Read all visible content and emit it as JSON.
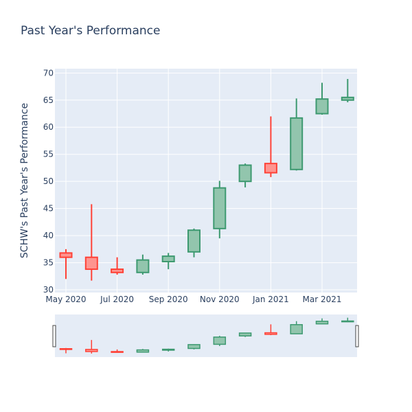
{
  "chart_data": {
    "type": "candlestick",
    "title": "Past Year's Performance",
    "ylabel": "SCHW's Past Year's Performance",
    "xlabel": "",
    "ylim": [
      29.5,
      70.8
    ],
    "yticks": [
      30,
      35,
      40,
      45,
      50,
      55,
      60,
      65,
      70
    ],
    "xticks": [
      {
        "label": "May 2020",
        "pos": 0
      },
      {
        "label": "Jul 2020",
        "pos": 2
      },
      {
        "label": "Sep 2020",
        "pos": 4
      },
      {
        "label": "Nov 2020",
        "pos": 6
      },
      {
        "label": "Jan 2021",
        "pos": 8
      },
      {
        "label": "Mar 2021",
        "pos": 10
      }
    ],
    "increasing_color": "#3d9970",
    "decreasing_color": "#ff4136",
    "increasing_fill": "#92c5ad",
    "decreasing_fill": "#fe9590",
    "candles": [
      {
        "open": 36.8,
        "high": 37.5,
        "low": 32.0,
        "close": 36.0
      },
      {
        "open": 36.0,
        "high": 45.8,
        "low": 31.7,
        "close": 33.8
      },
      {
        "open": 33.8,
        "high": 36.0,
        "low": 32.8,
        "close": 33.2
      },
      {
        "open": 33.2,
        "high": 36.5,
        "low": 32.8,
        "close": 35.5
      },
      {
        "open": 35.2,
        "high": 36.8,
        "low": 33.8,
        "close": 36.2
      },
      {
        "open": 37.0,
        "high": 41.3,
        "low": 36.0,
        "close": 41.0
      },
      {
        "open": 41.3,
        "high": 50.1,
        "low": 39.5,
        "close": 48.8
      },
      {
        "open": 50.0,
        "high": 53.3,
        "low": 48.9,
        "close": 53.0
      },
      {
        "open": 53.3,
        "high": 62.0,
        "low": 50.8,
        "close": 51.6
      },
      {
        "open": 52.2,
        "high": 65.3,
        "low": 52.0,
        "close": 61.7
      },
      {
        "open": 62.5,
        "high": 68.2,
        "low": 62.3,
        "close": 65.2
      },
      {
        "open": 65.0,
        "high": 68.9,
        "low": 64.6,
        "close": 65.5
      }
    ]
  }
}
